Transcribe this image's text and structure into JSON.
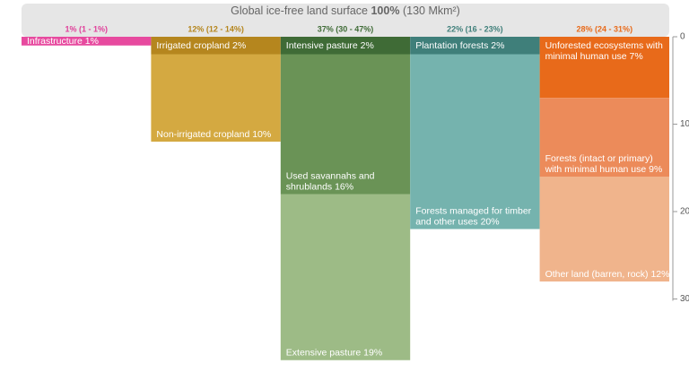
{
  "chart_data": {
    "type": "bar",
    "title": {
      "prefix": "Global ice-free land surface",
      "bold": "100%",
      "suffix": "(130 Mkm²)"
    },
    "ylim": [
      0,
      30
    ],
    "yticks": [
      0,
      10,
      20,
      30
    ],
    "columns": [
      {
        "header": "1% (1 - 1%)",
        "color": "#e0409a",
        "segments": [
          {
            "label": [
              "Infrastructure 1%"
            ],
            "value": 1,
            "color": "#e74a9f"
          }
        ]
      },
      {
        "header": "12% (12 - 14%)",
        "color": "#b5861e",
        "segments": [
          {
            "label": [
              "Irrigated cropland 2%"
            ],
            "value": 2,
            "color": "#b5861e"
          },
          {
            "label": [
              "Non-irrigated cropland 10%"
            ],
            "value": 10,
            "color": "#d4a941"
          }
        ]
      },
      {
        "header": "37% (30 - 47%)",
        "color": "#3f6b36",
        "segments": [
          {
            "label": [
              "Intensive pasture 2%"
            ],
            "value": 2,
            "color": "#3f6b36"
          },
          {
            "label": [
              "Used savannahs and",
              "shrublands 16%"
            ],
            "value": 16,
            "color": "#6a9356"
          },
          {
            "label": [
              "Extensive pasture 19%"
            ],
            "value": 19,
            "color": "#9dbb86"
          }
        ]
      },
      {
        "header": "22% (16 - 23%)",
        "color": "#3f7f7a",
        "segments": [
          {
            "label": [
              "Plantation forests 2%"
            ],
            "value": 2,
            "color": "#3f7f7a"
          },
          {
            "label": [
              "Forests managed for timber",
              "and other uses 20%"
            ],
            "value": 20,
            "color": "#75b3ae"
          }
        ]
      },
      {
        "header": "28% (24 - 31%)",
        "color": "#e86a1a",
        "segments": [
          {
            "label": [
              "Unforested ecosystems with",
              "minimal human use  7%"
            ],
            "value": 7,
            "color": "#e86a1a"
          },
          {
            "label": [
              "Forests (intact or primary)",
              "with minimal human use 9%"
            ],
            "value": 9,
            "color": "#ec8b5a"
          },
          {
            "label": [
              "Other land (barren, rock) 12%"
            ],
            "value": 12,
            "color": "#f0b48c"
          }
        ]
      }
    ]
  }
}
